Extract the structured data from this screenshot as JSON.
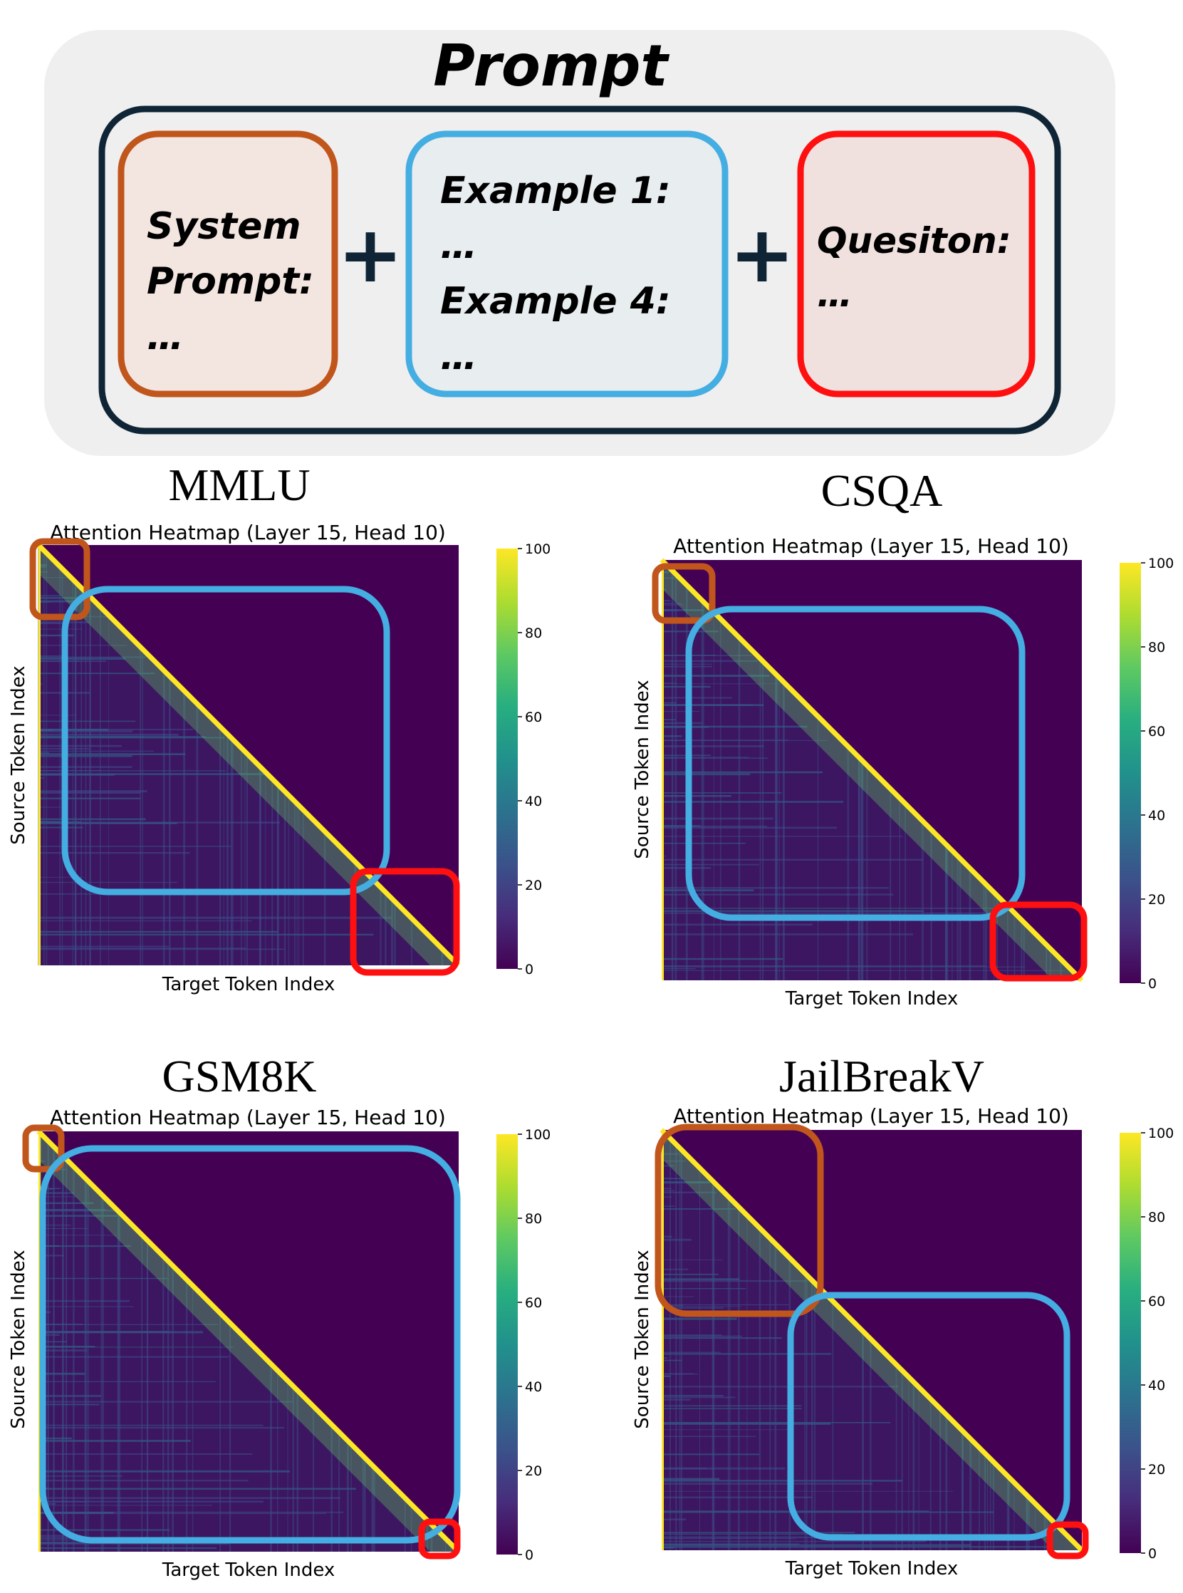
{
  "prompt_diagram": {
    "title": "Prompt",
    "plus": "+",
    "system_box": {
      "lines": [
        "System",
        "Prompt:",
        "…"
      ],
      "color": "#c1561c",
      "fill": "#f3e5df"
    },
    "examples_box": {
      "lines": [
        "Example 1:",
        "…",
        "Example 4:",
        "…"
      ],
      "color": "#44ade1",
      "fill": "#e8edf0"
    },
    "question_box": {
      "lines": [
        "Quesiton:",
        "…"
      ],
      "color": "#ff1010",
      "fill": "#f0e1df"
    },
    "outer_color": "#0f2535",
    "panel_fill": "#efefef"
  },
  "colors": {
    "heatmap_bg": "#440154",
    "system_region": "#c1561c",
    "examples_region": "#44ade1",
    "question_region": "#ff1010"
  },
  "chart_data": [
    {
      "type": "heatmap",
      "dataset": "MMLU",
      "title": "Attention Heatmap (Layer 15, Head 10)",
      "xlabel": "Target Token Index",
      "ylabel": "Source Token Index",
      "colorbar": {
        "ticks": [
          0,
          20,
          40,
          60,
          80,
          100
        ],
        "range": [
          0,
          100
        ],
        "colormap": "viridis"
      }
    },
    {
      "type": "heatmap",
      "dataset": "CSQA",
      "title": "Attention Heatmap (Layer 15, Head 10)",
      "xlabel": "Target Token Index",
      "ylabel": "Source Token Index",
      "colorbar": {
        "ticks": [
          0,
          20,
          40,
          60,
          80,
          100
        ],
        "range": [
          0,
          100
        ],
        "colormap": "viridis"
      }
    },
    {
      "type": "heatmap",
      "dataset": "GSM8K",
      "title": "Attention Heatmap (Layer 15, Head 10)",
      "xlabel": "Target Token Index",
      "ylabel": "Source Token Index",
      "colorbar": {
        "ticks": [
          0,
          20,
          40,
          60,
          80,
          100
        ],
        "range": [
          0,
          100
        ],
        "colormap": "viridis"
      }
    },
    {
      "type": "heatmap",
      "dataset": "JailBreakV",
      "title": "Attention Heatmap (Layer 15, Head 10)",
      "xlabel": "Target Token Index",
      "ylabel": "Source Token Index",
      "colorbar": {
        "ticks": [
          0,
          20,
          40,
          60,
          80,
          100
        ],
        "range": [
          0,
          100
        ],
        "colormap": "viridis"
      }
    }
  ]
}
